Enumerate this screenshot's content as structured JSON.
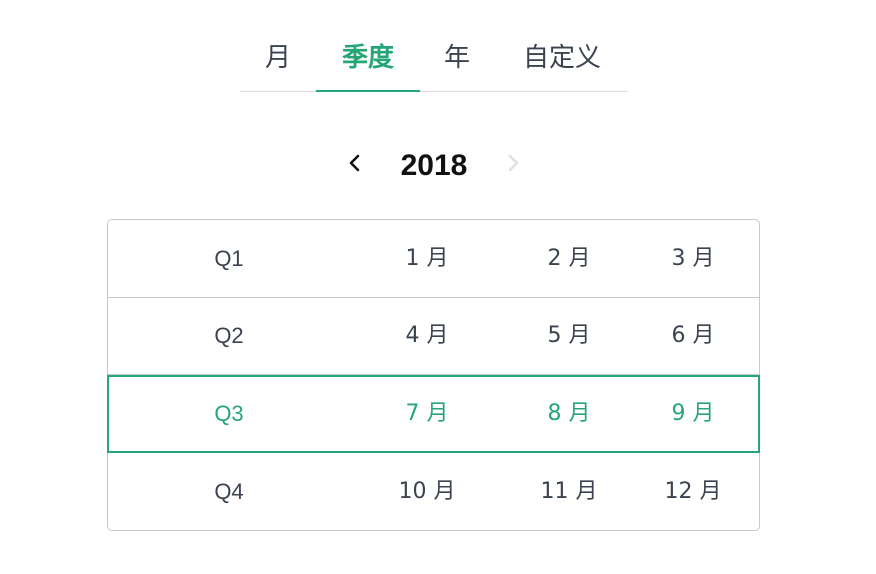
{
  "tabs": [
    {
      "label": "月",
      "active": false
    },
    {
      "label": "季度",
      "active": true
    },
    {
      "label": "年",
      "active": false
    },
    {
      "label": "自定义",
      "active": false
    }
  ],
  "year_nav": {
    "year": "2018",
    "prev_icon": "chevron-left-icon",
    "next_icon": "chevron-right-icon",
    "next_disabled": true
  },
  "quarters": [
    {
      "label": "Q1",
      "months": [
        "1 月",
        "2 月",
        "3 月"
      ],
      "selected": false
    },
    {
      "label": "Q2",
      "months": [
        "4 月",
        "5 月",
        "6 月"
      ],
      "selected": false
    },
    {
      "label": "Q3",
      "months": [
        "7 月",
        "8 月",
        "9 月"
      ],
      "selected": true
    },
    {
      "label": "Q4",
      "months": [
        "10 月",
        "11 月",
        "12 月"
      ],
      "selected": false
    }
  ],
  "colors": {
    "accent": "#26a677",
    "text": "#3c4350",
    "border": "#c3c9d1",
    "disabled": "#d9dde3"
  }
}
